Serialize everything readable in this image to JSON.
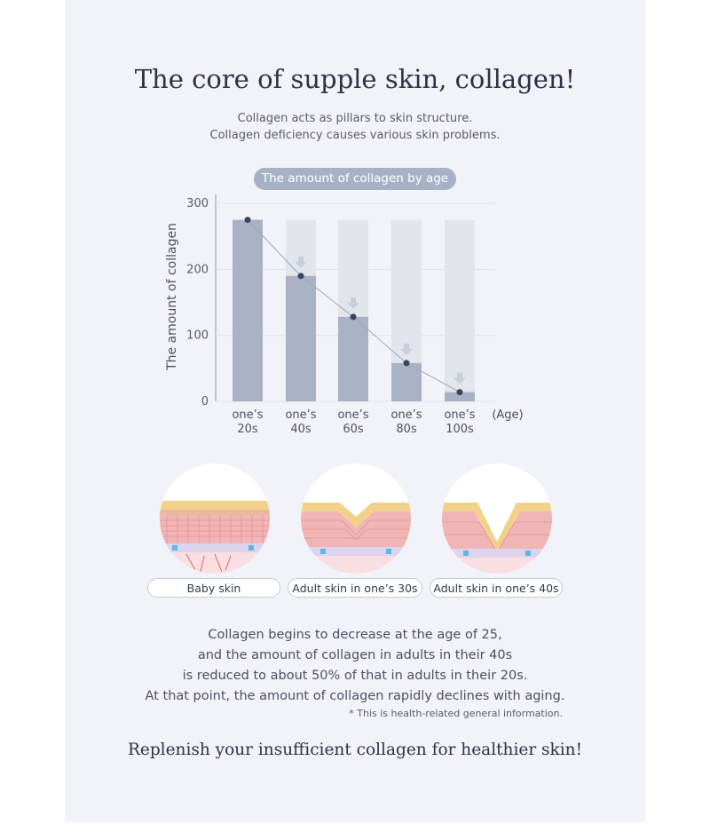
{
  "header": {
    "title": "The core of supple skin, collagen!",
    "subtitle_line1": "Collagen acts as pillars to skin structure.",
    "subtitle_line2": "Collagen deficiency causes various skin problems."
  },
  "chart_label": "The amount of collagen by age",
  "chart_data": {
    "type": "bar",
    "title": "The amount of collagen by age",
    "ylabel": "The amount of collagen",
    "xlabel": "(Age)",
    "ylim": [
      0,
      300
    ],
    "yticks": [
      0,
      100,
      200,
      300
    ],
    "categories": [
      "one’s 20s",
      "one’s 40s",
      "one’s 60s",
      "one’s 80s",
      "one’s 100s"
    ],
    "category_lines": [
      [
        "one’s",
        "20s"
      ],
      [
        "one’s",
        "40s"
      ],
      [
        "one’s",
        "60s"
      ],
      [
        "one’s",
        "80s"
      ],
      [
        "one’s",
        "100s"
      ]
    ],
    "values": [
      275,
      190,
      128,
      58,
      14
    ],
    "reference_value": 275,
    "line_overlay": true,
    "colors": {
      "bar": "#a9b2c5",
      "reference_bar": "#e2e5eb",
      "line": "#9fa7b8",
      "point": "#3a4460",
      "arrow": "#c9ced9"
    }
  },
  "skin_states": [
    {
      "label": "Baby skin",
      "icon": "baby-skin-cross-section"
    },
    {
      "label": "Adult skin in one’s 30s",
      "icon": "adult-30s-skin-cross-section"
    },
    {
      "label": "Adult skin in one’s 40s",
      "icon": "adult-40s-skin-cross-section"
    }
  ],
  "body": {
    "line1": "Collagen begins to decrease at the age of 25,",
    "line2": "and the amount of collagen in adults in their 40s",
    "line3": "is reduced to about 50% of that in adults in their 20s.",
    "line4": "At that point, the amount of collagen rapidly declines with aging.",
    "note": "* This is health-related general information."
  },
  "closing": "Replenish your insufficient collagen for healthier skin!"
}
